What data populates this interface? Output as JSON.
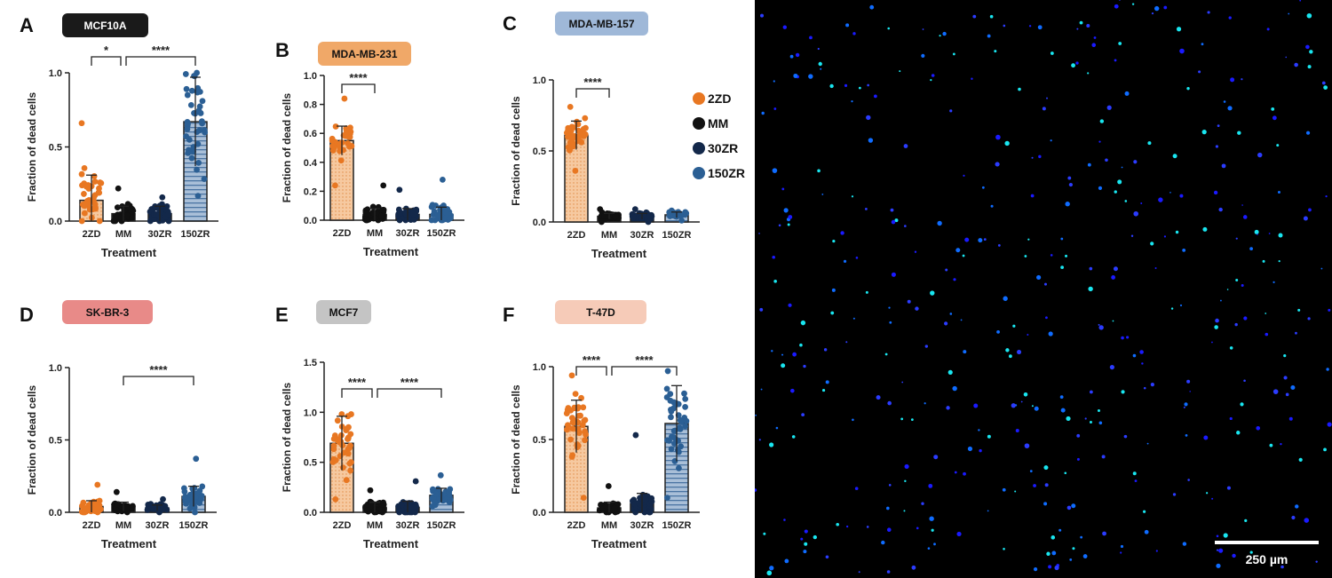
{
  "chart_data": [
    {
      "panel": "A",
      "title": "MCF10A",
      "badge_color": "#1a1a1a",
      "badge_text_color": "#ffffff",
      "type": "bar",
      "xlabel": "Treatment",
      "ylabel": "Fraction of dead cells",
      "categories": [
        "2ZD",
        "MM",
        "30ZR",
        "150ZR"
      ],
      "ylim": [
        0,
        1.0
      ],
      "yticks": [
        "0.0",
        "0.5",
        "1.0"
      ],
      "ytick_values": [
        0,
        0.5,
        1.0
      ],
      "series": [
        {
          "values": [
            0.14,
            0.05,
            0.05,
            0.67
          ],
          "sd": [
            0.17,
            0.05,
            0.05,
            0.3
          ],
          "range": [
            [
              0,
              0.66
            ],
            [
              0,
              0.22
            ],
            [
              0,
              0.16
            ],
            [
              0.17,
              1.0
            ]
          ]
        }
      ],
      "significance": [
        {
          "from": "2ZD",
          "to": "MM",
          "label": "*"
        },
        {
          "from": "MM",
          "to": "150ZR",
          "label": "****"
        }
      ]
    },
    {
      "panel": "B",
      "title": "MDA-MB-231",
      "badge_color": "#f0a868",
      "badge_text_color": "#111111",
      "type": "bar",
      "xlabel": "Treatment",
      "ylabel": "Fraction of dead cells",
      "categories": [
        "2ZD",
        "MM",
        "30ZR",
        "150ZR"
      ],
      "ylim": [
        0,
        1.0
      ],
      "yticks": [
        "0.0",
        "0.2",
        "0.4",
        "0.6",
        "0.8",
        "1.0"
      ],
      "ytick_values": [
        0,
        0.2,
        0.4,
        0.6,
        0.8,
        1.0
      ],
      "series": [
        {
          "values": [
            0.55,
            0.04,
            0.04,
            0.04
          ],
          "sd": [
            0.1,
            0.04,
            0.04,
            0.05
          ],
          "range": [
            [
              0.24,
              0.84
            ],
            [
              0,
              0.24
            ],
            [
              0,
              0.21
            ],
            [
              0,
              0.28
            ]
          ]
        }
      ],
      "significance": [
        {
          "from": "2ZD",
          "to": "MM",
          "label": "****"
        }
      ]
    },
    {
      "panel": "C",
      "title": "MDA-MB-157",
      "badge_color": "#9fb8d8",
      "badge_text_color": "#111111",
      "type": "bar",
      "xlabel": "Treatment",
      "ylabel": "Fraction of dead cells",
      "categories": [
        "2ZD",
        "MM",
        "30ZR",
        "150ZR"
      ],
      "ylim": [
        0,
        1.0
      ],
      "yticks": [
        "0.0",
        "0.5",
        "1.0"
      ],
      "ytick_values": [
        0,
        0.5,
        1.0
      ],
      "series": [
        {
          "values": [
            0.61,
            0.04,
            0.04,
            0.05
          ],
          "sd": [
            0.1,
            0.02,
            0.02,
            0.02
          ],
          "range": [
            [
              0.36,
              0.81
            ],
            [
              0,
              0.09
            ],
            [
              0,
              0.09
            ],
            [
              0.01,
              0.08
            ]
          ]
        }
      ],
      "significance": [
        {
          "from": "2ZD",
          "to": "MM",
          "label": "****"
        }
      ]
    },
    {
      "panel": "D",
      "title": "SK-BR-3",
      "badge_color": "#e88a88",
      "badge_text_color": "#111111",
      "type": "bar",
      "xlabel": "Treatment",
      "ylabel": "Fraction of dead cells",
      "categories": [
        "2ZD",
        "MM",
        "30ZR",
        "150ZR"
      ],
      "ylim": [
        0,
        1.0
      ],
      "yticks": [
        "0.0",
        "0.5",
        "1.0"
      ],
      "ytick_values": [
        0,
        0.5,
        1.0
      ],
      "series": [
        {
          "values": [
            0.04,
            0.04,
            0.03,
            0.11
          ],
          "sd": [
            0.04,
            0.03,
            0.02,
            0.07
          ],
          "range": [
            [
              0,
              0.19
            ],
            [
              0,
              0.14
            ],
            [
              0,
              0.09
            ],
            [
              0,
              0.37
            ]
          ]
        }
      ],
      "significance": [
        {
          "from": "MM",
          "to": "150ZR",
          "label": "****"
        }
      ]
    },
    {
      "panel": "E",
      "title": "MCF7",
      "badge_color": "#c4c4c4",
      "badge_text_color": "#111111",
      "type": "bar",
      "xlabel": "Treatment",
      "ylabel": "Fraction of dead cells",
      "categories": [
        "2ZD",
        "MM",
        "30ZR",
        "150ZR"
      ],
      "ylim": [
        0,
        1.5
      ],
      "yticks": [
        "0.0",
        "0.5",
        "1.0",
        "1.5"
      ],
      "ytick_values": [
        0,
        0.5,
        1.0,
        1.5
      ],
      "series": [
        {
          "values": [
            0.69,
            0.05,
            0.05,
            0.17
          ],
          "sd": [
            0.27,
            0.05,
            0.06,
            0.07
          ],
          "range": [
            [
              0.13,
              0.98
            ],
            [
              0,
              0.22
            ],
            [
              0,
              0.31
            ],
            [
              0.06,
              0.37
            ]
          ]
        }
      ],
      "significance": [
        {
          "from": "2ZD",
          "to": "MM",
          "label": "****"
        },
        {
          "from": "MM",
          "to": "150ZR",
          "label": "****"
        }
      ]
    },
    {
      "panel": "F",
      "title": "T-47D",
      "badge_color": "#f6cbb8",
      "badge_text_color": "#111111",
      "type": "bar",
      "xlabel": "Treatment",
      "ylabel": "Fraction of dead cells",
      "categories": [
        "2ZD",
        "MM",
        "30ZR",
        "150ZR"
      ],
      "ylim": [
        0,
        1.0
      ],
      "yticks": [
        "0.0",
        "0.5",
        "1.0"
      ],
      "ytick_values": [
        0,
        0.5,
        1.0
      ],
      "series": [
        {
          "values": [
            0.59,
            0.03,
            0.06,
            0.61
          ],
          "sd": [
            0.18,
            0.04,
            0.07,
            0.26
          ],
          "range": [
            [
              0.1,
              0.94
            ],
            [
              0,
              0.18
            ],
            [
              0,
              0.53
            ],
            [
              0.1,
              0.97
            ]
          ]
        }
      ],
      "significance": [
        {
          "from": "2ZD",
          "to": "MM",
          "label": "****"
        },
        {
          "from": "MM",
          "to": "150ZR",
          "label": "****"
        }
      ]
    }
  ],
  "legend": {
    "placement": "right of panel C",
    "items": [
      {
        "label": "2ZD",
        "color": "#e87722"
      },
      {
        "label": "MM",
        "color": "#111111"
      },
      {
        "label": "30ZR",
        "color": "#13284a"
      },
      {
        "label": "150ZR",
        "color": "#2b5f94"
      }
    ]
  },
  "colors": {
    "2ZD_bar": "#f6c9a0",
    "MM_bar": "#111111",
    "30ZR_bar": "#13284a",
    "150ZR_bar": "#a9bfd8"
  },
  "micrograph": {
    "scale_bar_label": "250 µm",
    "background": "#000000",
    "dot_colors": [
      "#1a1aff",
      "#2b3cff",
      "#19e6f0",
      "#0f6cff"
    ]
  }
}
